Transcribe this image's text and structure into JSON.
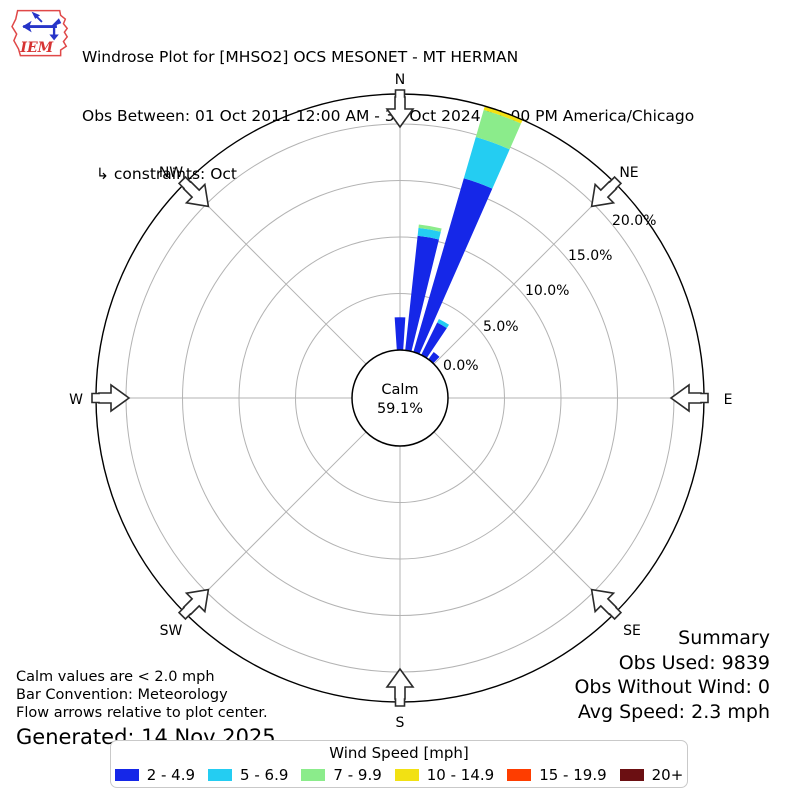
{
  "header": {
    "logo_text": "IEM",
    "title": "Windrose Plot for [MHSO2] OCS MESONET - MT HERMAN",
    "subtitle": "Obs Between: 01 Oct 2011 12:00 AM - 31 Oct 2024 11:00 PM America/Chicago",
    "constraints": "↳ constraints: Oct"
  },
  "plot": {
    "calm_label": "Calm",
    "calm_value": "59.1%",
    "compass": [
      "N",
      "NE",
      "E",
      "SE",
      "S",
      "SW",
      "W",
      "NW"
    ],
    "ring_labels": [
      "0.0%",
      "5.0%",
      "10.0%",
      "15.0%",
      "20.0%"
    ]
  },
  "chart_data": {
    "type": "windrose",
    "title": "Windrose Plot for [MHSO2] OCS MESONET - MT HERMAN",
    "units": "mph",
    "sector_width_deg": 10,
    "bar_convention": "Meteorology",
    "calm_pct": 59.1,
    "rings_pct": [
      0,
      5,
      10,
      15,
      20
    ],
    "axis_max_pct": 22.7,
    "speed_bins": [
      {
        "label": "2 - 4.9",
        "color": "#1527e8"
      },
      {
        "label": "5 - 6.9",
        "color": "#24cdf2"
      },
      {
        "label": "7 - 9.9",
        "color": "#8bec8b"
      },
      {
        "label": "10 - 14.9",
        "color": "#f2e113"
      },
      {
        "label": "15 - 19.9",
        "color": "#fe3d00"
      },
      {
        "label": "20+",
        "color": "#6b0f12"
      }
    ],
    "bars": [
      {
        "dir_deg": 0,
        "values": [
          2.9,
          0,
          0,
          0,
          0,
          0
        ]
      },
      {
        "dir_deg": 10,
        "values": [
          10.2,
          0.7,
          0.3,
          0,
          0,
          0
        ]
      },
      {
        "dir_deg": 20,
        "values": [
          16.0,
          3.8,
          2.5,
          0.4,
          0,
          0
        ]
      },
      {
        "dir_deg": 30,
        "values": [
          3.2,
          0.35,
          0,
          0,
          0,
          0
        ]
      },
      {
        "dir_deg": 40,
        "values": [
          0.8,
          0,
          0,
          0,
          0,
          0
        ]
      }
    ],
    "other_directions_pct": 0
  },
  "summary": {
    "heading": "Summary",
    "obs_used": "Obs Used: 9839",
    "obs_without_wind": "Obs Without Wind: 0",
    "avg_speed": "Avg Speed: 2.3 mph"
  },
  "notes": {
    "calm": "Calm values are < 2.0 mph",
    "convention": "Bar Convention: Meteorology",
    "arrows": "Flow arrows relative to plot center.",
    "generated": "Generated: 14 Nov 2025"
  },
  "legend": {
    "title": "Wind Speed [mph]"
  }
}
